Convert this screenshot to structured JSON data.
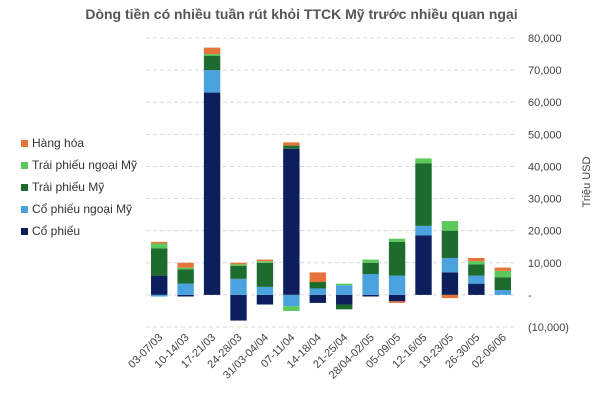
{
  "chart_data": {
    "type": "bar",
    "stacked": true,
    "title": "Dòng tiền có nhiều tuần rút khỏi TTCK Mỹ trước nhiều quan ngại",
    "ylabel": "Triệu USD",
    "xlabel": "",
    "ylim": [
      -10000,
      80000
    ],
    "yticks": [
      {
        "value": 80000,
        "label": "80,000"
      },
      {
        "value": 70000,
        "label": "70,000"
      },
      {
        "value": 60000,
        "label": "60,000"
      },
      {
        "value": 50000,
        "label": "50,000"
      },
      {
        "value": 40000,
        "label": "40,000"
      },
      {
        "value": 30000,
        "label": "30,000"
      },
      {
        "value": 20000,
        "label": "20,000"
      },
      {
        "value": 10000,
        "label": "10,000"
      },
      {
        "value": 0,
        "label": "-"
      },
      {
        "value": -10000,
        "label": "(10,000)"
      }
    ],
    "grid": true,
    "legend_position": "left",
    "categories": [
      "03-07/03",
      "10-14/03",
      "17-21/03",
      "24-28/03",
      "31/03-04/04",
      "07-11/04",
      "14-18/04",
      "21-25/04",
      "28/04-02/05",
      "05-09/05",
      "12-16/05",
      "19-23/05",
      "26-30/05",
      "02-06/06"
    ],
    "series": [
      {
        "name": "Cổ phiếu",
        "color": "#0c1f5c",
        "values": [
          6000,
          -500,
          63000,
          -8000,
          -3000,
          45500,
          -2500,
          -3000,
          -500,
          -2000,
          18500,
          7000,
          3500,
          0
        ]
      },
      {
        "name": "Cổ phiếu ngoại Mỹ",
        "color": "#4aa3df",
        "values": [
          -500,
          3500,
          7000,
          5000,
          2500,
          -3500,
          2000,
          3000,
          6500,
          6000,
          3000,
          4500,
          2500,
          1500
        ]
      },
      {
        "name": "Trái phiếu Mỹ",
        "color": "#1e6b2e",
        "values": [
          8500,
          4500,
          4500,
          4000,
          7500,
          1000,
          2000,
          -1500,
          3500,
          10500,
          19500,
          8500,
          3500,
          4000
        ]
      },
      {
        "name": "Trái phiếu ngoại Mỹ",
        "color": "#5cc95c",
        "values": [
          1500,
          500,
          500,
          500,
          500,
          -1500,
          0,
          500,
          1000,
          1000,
          1500,
          3000,
          1000,
          2000
        ]
      },
      {
        "name": "Hàng hóa",
        "color": "#e8733a",
        "values": [
          500,
          1500,
          2000,
          500,
          500,
          1000,
          3000,
          0,
          0,
          -500,
          0,
          -1000,
          1000,
          1000
        ]
      }
    ]
  }
}
